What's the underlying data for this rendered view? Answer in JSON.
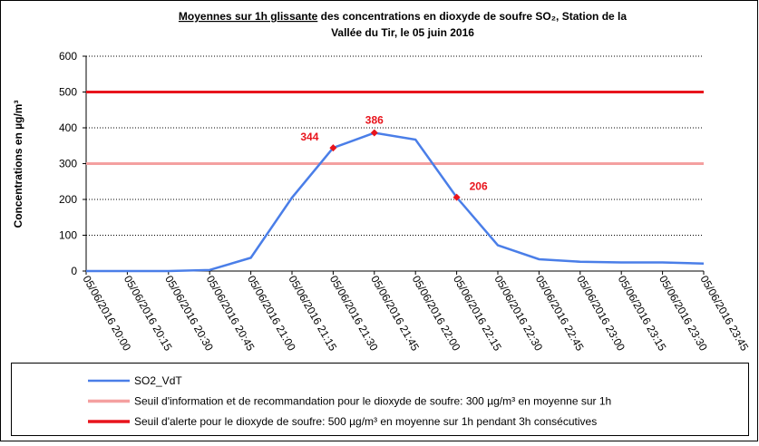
{
  "chart_data": {
    "type": "line",
    "title": [
      "Moyennes sur 1h glissante",
      " des concentrations en dioxyde de soufre SO₂, Station de la",
      "Vallée du Tir,  le 05 juin 2016"
    ],
    "y_label": "Concentrations en µg/m³",
    "categories": [
      "05/06/2016 20:00",
      "05/06/2016 20:15",
      "05/06/2016 20:30",
      "05/06/2016 20:45",
      "05/06/2016 21:00",
      "05/06/2016 21:15",
      "05/06/2016 21:30",
      "05/06/2016 21:45",
      "05/06/2016 22:00",
      "05/06/2016 22:15",
      "05/06/2016 22:30",
      "05/06/2016 22:45",
      "05/06/2016 23:00",
      "05/06/2016 23:15",
      "05/06/2016 23:30",
      "05/06/2016 23:45"
    ],
    "series": [
      {
        "name": "SO2_VdT",
        "color": "#4a7ee8",
        "values": [
          0,
          0,
          0,
          3,
          37,
          205,
          344,
          386,
          367,
          206,
          72,
          33,
          26,
          24,
          24,
          21
        ],
        "labeled_points": [
          6,
          7,
          9
        ],
        "label_color": "#e8141c"
      },
      {
        "name": "Seuil d'information et de recommandation pour le dioxyde de soufre: 300 µg/m³ en moyenne sur 1h",
        "color": "#f4a0a0",
        "values": [
          300,
          300,
          300,
          300,
          300,
          300,
          300,
          300,
          300,
          300,
          300,
          300,
          300,
          300,
          300,
          300
        ]
      },
      {
        "name": "Seuil d'alerte pour le dioxyde de soufre: 500 µg/m³ en moyenne sur 1h pendant 3h consécutives",
        "color": "#e8141c",
        "values": [
          500,
          500,
          500,
          500,
          500,
          500,
          500,
          500,
          500,
          500,
          500,
          500,
          500,
          500,
          500,
          500
        ]
      }
    ],
    "ylim": [
      0,
      600
    ],
    "yticks": [
      0,
      100,
      200,
      300,
      400,
      500,
      600
    ],
    "grid": true
  }
}
